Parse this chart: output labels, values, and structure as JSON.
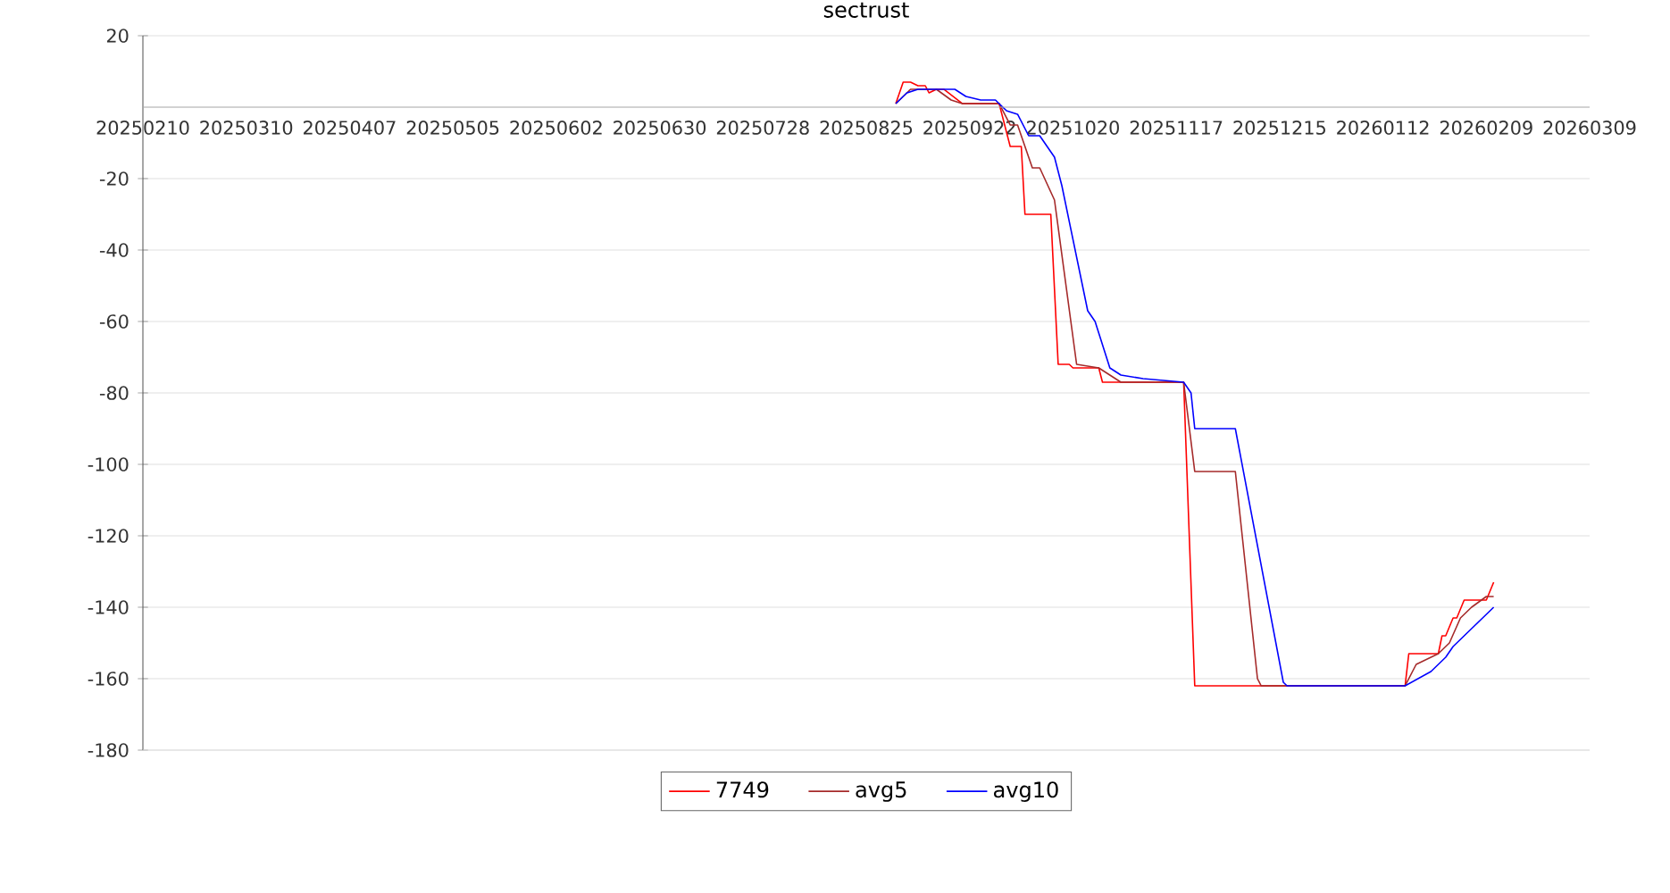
{
  "chart_data": {
    "type": "line",
    "title": "sectrust",
    "xlim": [
      "2025-02-10",
      "2026-03-09"
    ],
    "xticks": [
      {
        "value": "2025-02-10",
        "label": "20250210"
      },
      {
        "value": "2025-03-10",
        "label": "20250310"
      },
      {
        "value": "2025-04-07",
        "label": "20250407"
      },
      {
        "value": "2025-05-05",
        "label": "20250505"
      },
      {
        "value": "2025-06-02",
        "label": "20250602"
      },
      {
        "value": "2025-06-30",
        "label": "20250630"
      },
      {
        "value": "2025-07-28",
        "label": "20250728"
      },
      {
        "value": "2025-08-25",
        "label": "20250825"
      },
      {
        "value": "2025-09-22",
        "label": "20250922"
      },
      {
        "value": "2025-10-20",
        "label": "20251020"
      },
      {
        "value": "2025-11-17",
        "label": "20251117"
      },
      {
        "value": "2025-12-15",
        "label": "20251215"
      },
      {
        "value": "2026-01-12",
        "label": "20260112"
      },
      {
        "value": "2026-02-09",
        "label": "20260209"
      },
      {
        "value": "2026-03-09",
        "label": "20260309"
      }
    ],
    "ylim": [
      -180,
      20
    ],
    "yticks": [
      -180,
      -160,
      -140,
      -120,
      -100,
      -80,
      -60,
      -40,
      -20,
      20
    ],
    "grid": "y",
    "legend": "bottom",
    "series": [
      {
        "name": "7749",
        "color": "#ff0000",
        "x": [
          "2025-09-02",
          "2025-09-04",
          "2025-09-06",
          "2025-09-08",
          "2025-09-10",
          "2025-09-11",
          "2025-09-13",
          "2025-09-15",
          "2025-09-20",
          "2025-09-30",
          "2025-10-03",
          "2025-10-06",
          "2025-10-07",
          "2025-10-14",
          "2025-10-16",
          "2025-10-19",
          "2025-10-20",
          "2025-10-27",
          "2025-10-28",
          "2025-11-19",
          "2025-11-22",
          "2026-01-18",
          "2026-01-19",
          "2026-01-27",
          "2026-01-28",
          "2026-01-29",
          "2026-01-31",
          "2026-02-01",
          "2026-02-03",
          "2026-02-09",
          "2026-02-11"
        ],
        "values": [
          1,
          7,
          7,
          6,
          6,
          4,
          5,
          5,
          1,
          1,
          -11,
          -11,
          -30,
          -30,
          -72,
          -72,
          -73,
          -73,
          -77,
          -77,
          -162,
          -162,
          -153,
          -153,
          -148,
          -148,
          -143,
          -143,
          -138,
          -138,
          -133
        ]
      },
      {
        "name": "avg5",
        "color": "#a52a2a",
        "x": [
          "2025-09-02",
          "2025-09-04",
          "2025-09-06",
          "2025-09-09",
          "2025-09-13",
          "2025-09-17",
          "2025-09-20",
          "2025-09-30",
          "2025-10-03",
          "2025-10-05",
          "2025-10-09",
          "2025-10-11",
          "2025-10-15",
          "2025-10-21",
          "2025-10-27",
          "2025-11-02",
          "2025-11-19",
          "2025-11-22",
          "2025-12-03",
          "2025-12-09",
          "2025-12-10",
          "2026-01-18",
          "2026-01-21",
          "2026-01-27",
          "2026-01-30",
          "2026-02-02",
          "2026-02-05",
          "2026-02-09",
          "2026-02-11"
        ],
        "values": [
          1,
          3,
          5,
          5,
          5,
          2,
          1,
          1,
          -5,
          -5,
          -17,
          -17,
          -26,
          -72,
          -73,
          -77,
          -77,
          -102,
          -102,
          -160,
          -162,
          -162,
          -156,
          -153,
          -150,
          -143,
          -140,
          -137,
          -137
        ]
      },
      {
        "name": "avg10",
        "color": "#0000ff",
        "x": [
          "2025-09-02",
          "2025-09-05",
          "2025-09-08",
          "2025-09-18",
          "2025-09-21",
          "2025-09-25",
          "2025-09-29",
          "2025-10-02",
          "2025-10-05",
          "2025-10-08",
          "2025-10-11",
          "2025-10-15",
          "2025-10-17",
          "2025-10-24",
          "2025-10-26",
          "2025-10-30",
          "2025-11-02",
          "2025-11-08",
          "2025-11-19",
          "2025-11-21",
          "2025-11-22",
          "2025-12-03",
          "2025-12-16",
          "2025-12-17",
          "2026-01-18",
          "2026-01-25",
          "2026-01-29",
          "2026-01-31",
          "2026-02-11"
        ],
        "values": [
          1,
          4,
          5,
          5,
          3,
          2,
          2,
          -1,
          -2,
          -8,
          -8,
          -14,
          -22,
          -57,
          -60,
          -73,
          -75,
          -76,
          -77,
          -80,
          -90,
          -90,
          -161,
          -162,
          -162,
          -158,
          -154,
          -151,
          -140
        ]
      }
    ]
  }
}
